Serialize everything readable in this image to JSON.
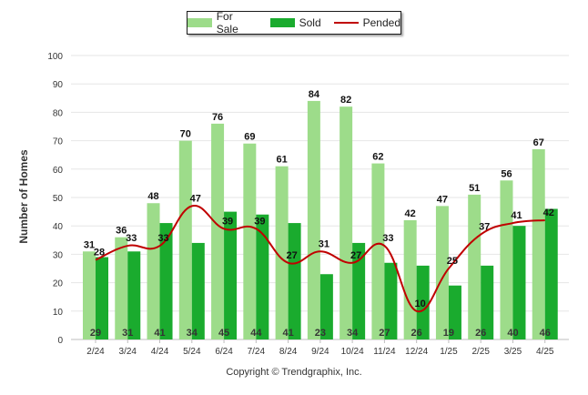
{
  "chart_data": {
    "type": "bar",
    "categories": [
      "2/24",
      "3/24",
      "4/24",
      "5/24",
      "6/24",
      "7/24",
      "8/24",
      "9/24",
      "10/24",
      "11/24",
      "12/24",
      "1/25",
      "2/25",
      "3/25",
      "4/25"
    ],
    "series": [
      {
        "name": "For Sale",
        "type": "bar",
        "color": "#9ddc8a",
        "values": [
          31,
          36,
          48,
          70,
          76,
          69,
          61,
          84,
          82,
          62,
          42,
          47,
          51,
          56,
          67
        ]
      },
      {
        "name": "Sold",
        "type": "bar",
        "color": "#1aab2e",
        "values": [
          29,
          31,
          41,
          34,
          45,
          44,
          41,
          23,
          34,
          27,
          26,
          19,
          26,
          40,
          46
        ]
      },
      {
        "name": "Pended",
        "type": "line",
        "color": "#c00000",
        "values": [
          28,
          33,
          33,
          47,
          39,
          39,
          27,
          31,
          27,
          33,
          10,
          25,
          37,
          41,
          42
        ]
      }
    ],
    "ylabel": "Number of Homes",
    "ylim": [
      0,
      100
    ],
    "yticks": [
      0,
      10,
      20,
      30,
      40,
      50,
      60,
      70,
      80,
      90,
      100
    ],
    "grid": true,
    "legend": "top-center"
  },
  "footer": {
    "copyright": "Copyright © Trendgraphix, Inc."
  }
}
